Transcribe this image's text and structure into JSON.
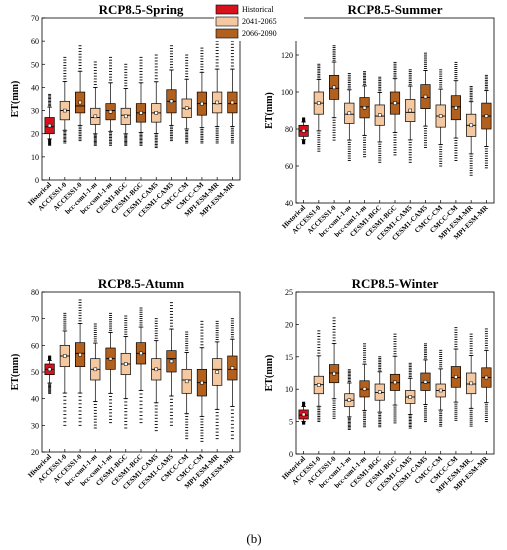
{
  "caption": "(b)",
  "legend": [
    {
      "label": "Historical",
      "color": "#d9111a"
    },
    {
      "label": "2041-2065",
      "color": "#f4c9a2"
    },
    {
      "label": "2066-2090",
      "color": "#b1601e"
    }
  ],
  "chart_data": [
    {
      "type": "box",
      "title": "RCP8.5-Spring",
      "ylabel": "ET(mm)",
      "ylim": [
        0,
        70
      ],
      "yticks": [
        0,
        10,
        20,
        30,
        40,
        50,
        60,
        70
      ],
      "categories": [
        "Historical",
        "ACCESS1-0",
        "ACCESS1-0",
        "bcc-csm1-1-m",
        "bcc-csm1-1-m",
        "CESM1-BGC",
        "CESM1-BGC",
        "CESM1-CAM5",
        "CESM1-CAM5",
        "CMCC-CM",
        "CMCC-CM",
        "MPI-ESM-MR",
        "MPI-ESM-MR"
      ],
      "series_index": [
        0,
        1,
        2,
        1,
        2,
        1,
        2,
        1,
        2,
        1,
        2,
        1,
        2
      ],
      "boxes": [
        {
          "min": 15,
          "q1": 20,
          "median": 23,
          "q3": 27,
          "max": 37
        },
        {
          "min": 16,
          "q1": 26,
          "median": 30,
          "q3": 34,
          "max": 53
        },
        {
          "min": 17,
          "q1": 29,
          "median": 32,
          "q3": 38,
          "max": 58
        },
        {
          "min": 15,
          "q1": 24,
          "median": 27,
          "q3": 31,
          "max": 51
        },
        {
          "min": 15,
          "q1": 26,
          "median": 30,
          "q3": 33,
          "max": 53
        },
        {
          "min": 15,
          "q1": 24,
          "median": 28,
          "q3": 31,
          "max": 50
        },
        {
          "min": 15,
          "q1": 25,
          "median": 29,
          "q3": 33,
          "max": 53
        },
        {
          "min": 14,
          "q1": 25,
          "median": 29,
          "q3": 33,
          "max": 54
        },
        {
          "min": 17,
          "q1": 29,
          "median": 34,
          "q3": 39,
          "max": 58
        },
        {
          "min": 16,
          "q1": 27,
          "median": 31,
          "q3": 35,
          "max": 54
        },
        {
          "min": 16,
          "q1": 28,
          "median": 33,
          "q3": 38,
          "max": 57
        },
        {
          "min": 16,
          "q1": 29,
          "median": 33,
          "q3": 38,
          "max": 60
        },
        {
          "min": 16,
          "q1": 29,
          "median": 33,
          "q3": 38,
          "max": 60
        }
      ]
    },
    {
      "type": "box",
      "title": "RCP8.5-Summer",
      "ylabel": "ET(mm)",
      "ylim": [
        40,
        140
      ],
      "yticks": [
        40,
        60,
        80,
        100,
        120,
        140
      ],
      "categories": [
        "Historical",
        "ACCESS1-0",
        "ACCESS1-0",
        "bcc-csm1-1-m",
        "bcc-csm1-1-m",
        "CESM1-BGC",
        "CESM1-BGC",
        "CESM1-CAM5",
        "CESM1-CAM5",
        "CMCC-CM",
        "CMCC-CM",
        "MPI-ESM-MR",
        "MPI-ESM-MR"
      ],
      "series_index": [
        0,
        1,
        2,
        1,
        2,
        1,
        2,
        1,
        2,
        1,
        2,
        1,
        2
      ],
      "boxes": [
        {
          "min": 72,
          "q1": 76,
          "median": 79,
          "q3": 82,
          "max": 86
        },
        {
          "min": 68,
          "q1": 88,
          "median": 94,
          "q3": 100,
          "max": 115
        },
        {
          "min": 74,
          "q1": 96,
          "median": 102,
          "q3": 109,
          "max": 125
        },
        {
          "min": 63,
          "q1": 83,
          "median": 88,
          "q3": 94,
          "max": 110
        },
        {
          "min": 65,
          "q1": 86,
          "median": 92,
          "q3": 97,
          "max": 111
        },
        {
          "min": 62,
          "q1": 82,
          "median": 87,
          "q3": 93,
          "max": 108
        },
        {
          "min": 66,
          "q1": 88,
          "median": 94,
          "q3": 100,
          "max": 116
        },
        {
          "min": 62,
          "q1": 84,
          "median": 89,
          "q3": 96,
          "max": 112
        },
        {
          "min": 70,
          "q1": 91,
          "median": 97,
          "q3": 104,
          "max": 121
        },
        {
          "min": 60,
          "q1": 81,
          "median": 87,
          "q3": 93,
          "max": 112
        },
        {
          "min": 63,
          "q1": 85,
          "median": 92,
          "q3": 98,
          "max": 116
        },
        {
          "min": 55,
          "q1": 76,
          "median": 82,
          "q3": 88,
          "max": 103
        },
        {
          "min": 59,
          "q1": 80,
          "median": 87,
          "q3": 94,
          "max": 109
        }
      ]
    },
    {
      "type": "box",
      "title": "RCP8.5-Atumn",
      "ylabel": "ET(mm)",
      "ylim": [
        20,
        80
      ],
      "yticks": [
        20,
        30,
        40,
        50,
        60,
        70,
        80
      ],
      "categories": [
        "Historical",
        "ACCESS1-0",
        "ACCESS1-0",
        "bcc-csm1-1-m",
        "bcc-csm1-1-m",
        "CESM1-BGC",
        "CESM1-BGC",
        "CESM1-CAM5",
        "CESM1-CAM5",
        "CMCC-CM",
        "CMCC-CM",
        "MPI-ESM-MR",
        "MPI-ESM-MR"
      ],
      "series_index": [
        0,
        1,
        2,
        1,
        2,
        1,
        2,
        1,
        2,
        1,
        2,
        1,
        2
      ],
      "boxes": [
        {
          "min": 42,
          "q1": 49,
          "median": 51,
          "q3": 53,
          "max": 56
        },
        {
          "min": 30,
          "q1": 52,
          "median": 56,
          "q3": 60,
          "max": 72
        },
        {
          "min": 30,
          "q1": 52,
          "median": 57,
          "q3": 61,
          "max": 77
        },
        {
          "min": 29,
          "q1": 47,
          "median": 51,
          "q3": 55,
          "max": 68
        },
        {
          "min": 31,
          "q1": 51,
          "median": 55,
          "q3": 59,
          "max": 72
        },
        {
          "min": 29,
          "q1": 49,
          "median": 53,
          "q3": 57,
          "max": 71
        },
        {
          "min": 31,
          "q1": 53,
          "median": 57,
          "q3": 61,
          "max": 74
        },
        {
          "min": 28,
          "q1": 47,
          "median": 51,
          "q3": 55,
          "max": 70
        },
        {
          "min": 30,
          "q1": 50,
          "median": 55,
          "q3": 58,
          "max": 76
        },
        {
          "min": 25,
          "q1": 42,
          "median": 47,
          "q3": 51,
          "max": 65
        },
        {
          "min": 24,
          "q1": 41,
          "median": 46,
          "q3": 51,
          "max": 69
        },
        {
          "min": 25,
          "q1": 45,
          "median": 51,
          "q3": 55,
          "max": 69
        },
        {
          "min": 25,
          "q1": 47,
          "median": 51,
          "q3": 56,
          "max": 70
        }
      ]
    },
    {
      "type": "box",
      "title": "RCP8.5-Winter",
      "ylabel": "ET(mm)",
      "ylim": [
        0,
        25
      ],
      "yticks": [
        0,
        5,
        10,
        15,
        20,
        25
      ],
      "categories": [
        "Historical",
        "ACCESS1-0",
        "ACCESS1-0",
        "bcc-csm1-1-m",
        "bcc-csm1-1-m",
        "CESM1-BGC",
        "CESM1-BGC",
        "CESM1-CAM5",
        "CESM1-CAM5",
        "CMCC-CM",
        "CMCC-CM",
        "MPI-ESM-MR_",
        "MPI-ESM-MR"
      ],
      "series_index": [
        0,
        1,
        2,
        1,
        2,
        1,
        2,
        1,
        2,
        1,
        2,
        1,
        2
      ],
      "boxes": [
        {
          "min": 4.6,
          "q1": 5.4,
          "median": 6.0,
          "q3": 6.8,
          "max": 8.0
        },
        {
          "min": 5.0,
          "q1": 9.3,
          "median": 10.7,
          "q3": 12.0,
          "max": 19.0
        },
        {
          "min": 5.5,
          "q1": 11.0,
          "median": 12.5,
          "q3": 13.8,
          "max": 21.0
        },
        {
          "min": 3.8,
          "q1": 7.3,
          "median": 8.3,
          "q3": 9.3,
          "max": 13.0
        },
        {
          "min": 4.2,
          "q1": 8.8,
          "median": 10.0,
          "q3": 11.3,
          "max": 17.0
        },
        {
          "min": 4.2,
          "q1": 8.3,
          "median": 9.5,
          "q3": 10.8,
          "max": 15.0
        },
        {
          "min": 4.8,
          "q1": 9.8,
          "median": 11.0,
          "q3": 12.3,
          "max": 18.5
        },
        {
          "min": 4.0,
          "q1": 7.8,
          "median": 8.8,
          "q3": 9.8,
          "max": 14.0
        },
        {
          "min": 5.0,
          "q1": 9.8,
          "median": 11.0,
          "q3": 12.5,
          "max": 17.0
        },
        {
          "min": 4.3,
          "q1": 8.8,
          "median": 9.8,
          "q3": 10.8,
          "max": 16.0
        },
        {
          "min": 5.2,
          "q1": 10.3,
          "median": 11.8,
          "q3": 13.5,
          "max": 19.5
        },
        {
          "min": 4.3,
          "q1": 9.3,
          "median": 10.8,
          "q3": 12.5,
          "max": 18.5
        },
        {
          "min": 5.0,
          "q1": 10.3,
          "median": 11.8,
          "q3": 13.3,
          "max": 19.3
        }
      ]
    }
  ]
}
